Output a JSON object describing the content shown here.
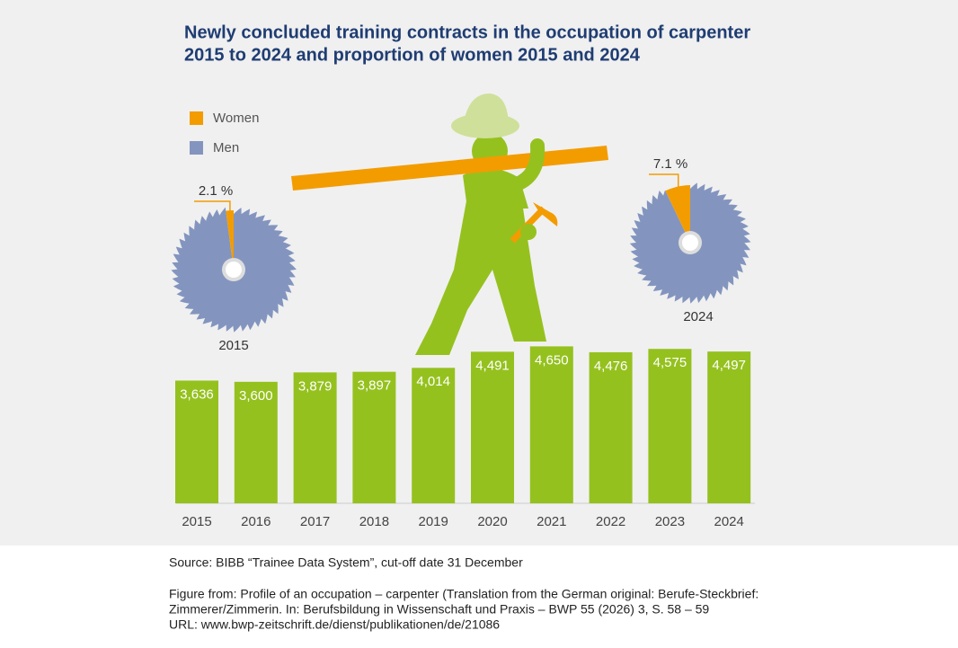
{
  "chart_data": [
    {
      "type": "bar",
      "title": [
        "Newly concluded training contracts in the occupation of carpenter",
        "2015 to 2024 and proportion of women 2015 and 2024"
      ],
      "categories": [
        "2015",
        "2016",
        "2017",
        "2018",
        "2019",
        "2020",
        "2021",
        "2022",
        "2023",
        "2024"
      ],
      "values": [
        3636,
        3600,
        3879,
        3897,
        4014,
        4491,
        4650,
        4476,
        4575,
        4497
      ],
      "value_labels": [
        "3,636",
        "3,600",
        "3,879",
        "3,897",
        "4,014",
        "4,491",
        "4,650",
        "4,476",
        "4,575",
        "4,497"
      ],
      "color": "#95c11f"
    },
    {
      "type": "pie",
      "categories": [
        "2015",
        "2024"
      ],
      "series": [
        {
          "name": "Women",
          "color": "#f39c00",
          "values": [
            2.1,
            7.1
          ],
          "value_labels": [
            "2.1 %",
            "7.1 %"
          ]
        },
        {
          "name": "Men",
          "color": "#8395bf",
          "values": [
            97.9,
            92.9
          ]
        }
      ]
    }
  ],
  "source": "Source: BIBB “Trainee Data System”, cut-off date 31 December",
  "citation": [
    "Figure from: Profile of an occupation – carpenter (Translation from the German original: Berufe-Steckbrief:",
    "Zimmerer/Zimmerin. In: Berufsbildung in Wissenschaft und Praxis – BWP 55 (2026) 3, S. 58 – 59",
    "URL: www.bwp-zeitschrift.de/dienst/publikationen/de/21086"
  ]
}
